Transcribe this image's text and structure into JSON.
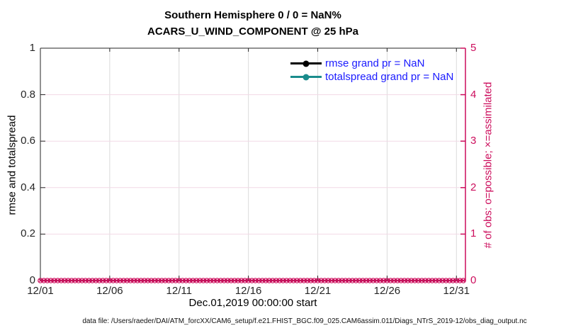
{
  "figure": {
    "title": "Southern Hemisphere 0 / 0 = NaN%",
    "subtitle": "ACARS_U_WIND_COMPONENT @ 25 hPa",
    "footer": "data file: /Users/raeder/DAI/ATM_forcXX/CAM6_setup/f.e21.FHIST_BGC.f09_025.CAM6assim.011/Diags_NTrS_2019-12/obs_diag_output.nc"
  },
  "chart_data": {
    "type": "line",
    "title": "Southern Hemisphere 0 / 0 = NaN%",
    "subtitle": "ACARS_U_WIND_COMPONENT @ 25 hPa",
    "xlabel": "Dec.01,2019 00:00:00 start",
    "ylabel_left": "rmse and totalspread",
    "ylabel_right": "# of obs: o=possible; ×=assimilated",
    "x_tick_labels": [
      "12/01",
      "12/06",
      "12/11",
      "12/16",
      "12/21",
      "12/26",
      "12/31"
    ],
    "x_tick_days": [
      0,
      5,
      10,
      15,
      20,
      25,
      30
    ],
    "x_range_days": [
      0,
      30.65
    ],
    "y_left_ticks": [
      0,
      0.2,
      0.4,
      0.6,
      0.8,
      1
    ],
    "y_left_tick_labels": [
      "0",
      "0.2",
      "0.4",
      "0.6",
      "0.8",
      "1"
    ],
    "y_left_range": [
      0,
      1
    ],
    "y_right_ticks": [
      0,
      1,
      2,
      3,
      4,
      5
    ],
    "y_right_tick_labels": [
      "0",
      "1",
      "2",
      "3",
      "4",
      "5"
    ],
    "y_right_range": [
      0,
      5
    ],
    "grid": true,
    "legend_position": "upper-right-inside, no box",
    "series": [
      {
        "name": "rmse grand pr = NaN",
        "color": "#000000",
        "marker": "filled-circle",
        "values": null
      },
      {
        "name": "totalspread grand pr = NaN",
        "color": "#1A8C8C",
        "marker": "filled-circle",
        "values": null
      }
    ],
    "obs_counts": {
      "possible_marker": "o",
      "assimilated_marker": "×",
      "value_at_every_time": 0,
      "times_per_day": 4,
      "num_points": 123,
      "color": "#CC0D5C"
    },
    "colors": {
      "axis_left": "#262626",
      "axis_right": "#CC0D5C",
      "grid_vertical": "#DBDBDB",
      "grid_horizontal": "#F2D9E6",
      "legend_text": "#1A1AFF",
      "title": "#000000"
    }
  }
}
